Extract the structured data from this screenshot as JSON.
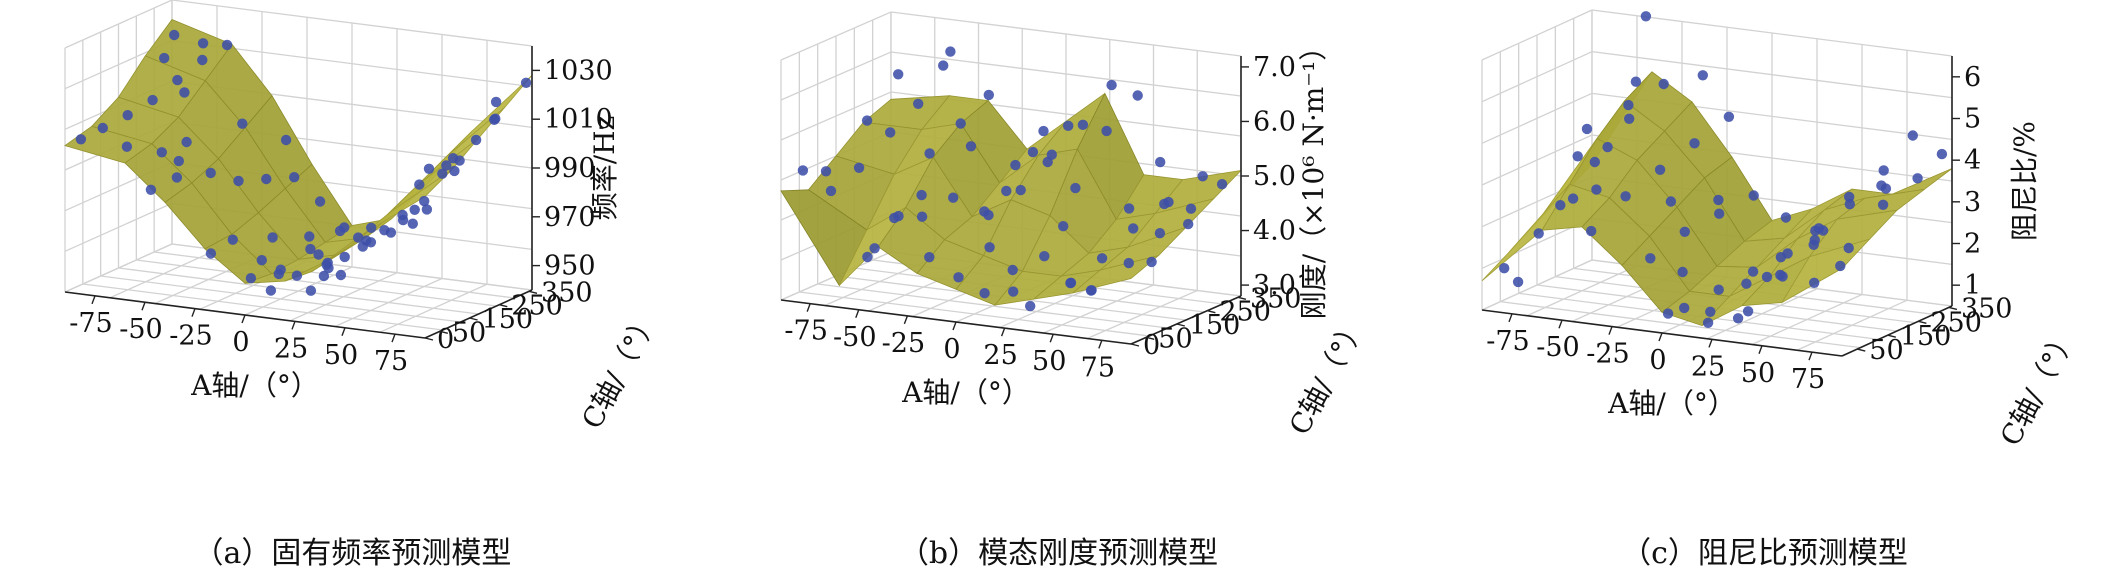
{
  "chart_data": [
    {
      "type": "scatter",
      "plot_kind": "3d-surface-with-scatter",
      "caption": "（a）固有频率预测模型",
      "xlabel": "A轴/（°）",
      "ylabel": "C轴/（°）",
      "zlabel": "频率/Hz",
      "xticks": [
        "-75",
        "-50",
        "-25",
        "0",
        "25",
        "50",
        "75"
      ],
      "yticks": [
        "0",
        "50",
        "150",
        "250",
        "350"
      ],
      "zticks": [
        "950",
        "970",
        "990",
        "1010",
        "1030"
      ],
      "xlim": [
        -90,
        90
      ],
      "ylim": [
        0,
        360
      ],
      "zlim": [
        940,
        1040
      ],
      "surface": {
        "a": [
          -90,
          -60,
          -40,
          -20,
          0,
          20,
          40,
          60,
          90
        ],
        "c": [
          0,
          90,
          180,
          270,
          360
        ],
        "z": [
          [
            1000,
            1003,
            1010,
            1022,
            1032
          ],
          [
            996,
            999,
            1005,
            1015,
            1025
          ],
          [
            982,
            985,
            990,
            998,
            1006
          ],
          [
            965,
            966,
            970,
            975,
            980
          ],
          [
            953,
            952,
            953,
            955,
            957
          ],
          [
            956,
            955,
            957,
            959,
            962
          ],
          [
            966,
            968,
            972,
            976,
            980
          ],
          [
            980,
            984,
            990,
            996,
            1002
          ],
          [
            998,
            1004,
            1012,
            1020,
            1028
          ]
        ]
      },
      "points": [
        [
          -85,
          20,
          1002
        ],
        [
          -80,
          60,
          1005
        ],
        [
          -75,
          110,
          1008
        ],
        [
          -70,
          160,
          1012
        ],
        [
          -65,
          210,
          1018
        ],
        [
          -60,
          260,
          1024
        ],
        [
          -55,
          310,
          1028
        ],
        [
          -80,
          300,
          1030
        ],
        [
          -70,
          330,
          1026
        ],
        [
          -60,
          200,
          1014
        ],
        [
          -50,
          140,
          998
        ],
        [
          -45,
          80,
          994
        ],
        [
          -40,
          40,
          990
        ],
        [
          -35,
          120,
          988
        ],
        [
          -30,
          180,
          982
        ],
        [
          -25,
          240,
          980
        ],
        [
          -20,
          300,
          978
        ],
        [
          -15,
          60,
          966
        ],
        [
          -10,
          160,
          962
        ],
        [
          -5,
          250,
          958
        ],
        [
          0,
          20,
          954
        ],
        [
          0,
          120,
          952
        ],
        [
          0,
          220,
          955
        ],
        [
          0,
          320,
          957
        ],
        [
          5,
          80,
          953
        ],
        [
          10,
          180,
          956
        ],
        [
          15,
          280,
          958
        ],
        [
          20,
          40,
          956
        ],
        [
          20,
          140,
          955
        ],
        [
          25,
          240,
          960
        ],
        [
          30,
          330,
          964
        ],
        [
          35,
          100,
          962
        ],
        [
          40,
          200,
          968
        ],
        [
          45,
          300,
          975
        ],
        [
          50,
          60,
          970
        ],
        [
          55,
          160,
          978
        ],
        [
          60,
          260,
          990
        ],
        [
          65,
          340,
          1000
        ],
        [
          70,
          100,
          985
        ],
        [
          75,
          200,
          996
        ],
        [
          80,
          300,
          1012
        ],
        [
          85,
          40,
          990
        ],
        [
          85,
          150,
          1004
        ],
        [
          88,
          250,
          1016
        ],
        [
          90,
          340,
          1026
        ],
        [
          60,
          20,
          975
        ],
        [
          30,
          20,
          952
        ],
        [
          -20,
          20,
          962
        ],
        [
          70,
          20,
          980
        ],
        [
          45,
          20,
          960
        ],
        [
          10,
          20,
          950
        ],
        [
          -50,
          20,
          985
        ],
        [
          -30,
          340,
          990
        ],
        [
          40,
          350,
          985
        ],
        [
          -65,
          40,
          1000
        ],
        [
          15,
          180,
          951
        ],
        [
          -5,
          90,
          957
        ],
        [
          25,
          110,
          958
        ],
        [
          55,
          330,
          992
        ],
        [
          -40,
          260,
          1000
        ],
        [
          65,
          240,
          995
        ],
        [
          -85,
          300,
          1020
        ],
        [
          78,
          320,
          1018
        ],
        [
          50,
          250,
          985
        ],
        [
          35,
          30,
          958
        ],
        [
          -10,
          320,
          968
        ],
        [
          5,
          300,
          960
        ],
        [
          -55,
          90,
          996
        ],
        [
          75,
          60,
          982
        ],
        [
          20,
          290,
          962
        ]
      ]
    },
    {
      "type": "scatter",
      "plot_kind": "3d-surface-with-scatter",
      "caption": "（b）模态刚度预测模型",
      "xlabel": "A轴/（°）",
      "ylabel": "C轴/（°）",
      "zlabel": "刚度/（×10⁶ N·m⁻¹）",
      "xticks": [
        "-75",
        "-50",
        "-25",
        "0",
        "25",
        "50",
        "75"
      ],
      "yticks": [
        "0",
        "50",
        "150",
        "250",
        "350"
      ],
      "zticks": [
        "3.0",
        "4.0",
        "5.0",
        "6.0",
        "7.0"
      ],
      "xlim": [
        -90,
        90
      ],
      "ylim": [
        0,
        360
      ],
      "zlim": [
        2.8,
        7.2
      ],
      "surface": {
        "a": [
          -90,
          -60,
          -40,
          -20,
          0,
          20,
          40,
          60,
          90
        ],
        "c": [
          0,
          90,
          180,
          270,
          360
        ],
        "z": [
          [
            4.8,
            4.6,
            5.0,
            5.4,
            5.6
          ],
          [
            3.2,
            4.0,
            4.8,
            5.4,
            5.8
          ],
          [
            4.0,
            4.5,
            5.2,
            5.6,
            5.8
          ],
          [
            3.6,
            4.0,
            4.2,
            4.6,
            5.0
          ],
          [
            3.4,
            3.8,
            4.6,
            5.2,
            5.6
          ],
          [
            3.2,
            3.6,
            4.4,
            5.4,
            6.2
          ],
          [
            3.4,
            3.6,
            3.8,
            4.2,
            4.8
          ],
          [
            3.6,
            3.8,
            4.0,
            4.4,
            4.8
          ],
          [
            4.0,
            4.2,
            4.5,
            4.8,
            5.1
          ]
        ]
      },
      "points": [
        [
          -85,
          40,
          5.1
        ],
        [
          -80,
          100,
          4.6
        ],
        [
          -75,
          160,
          4.9
        ],
        [
          -70,
          230,
          5.4
        ],
        [
          -65,
          290,
          5.8
        ],
        [
          -60,
          340,
          6.4
        ],
        [
          -55,
          60,
          3.6
        ],
        [
          -50,
          130,
          4.2
        ],
        [
          -45,
          200,
          5.2
        ],
        [
          -40,
          270,
          5.6
        ],
        [
          -35,
          330,
          6.0
        ],
        [
          -30,
          80,
          4.4
        ],
        [
          -25,
          150,
          4.6
        ],
        [
          -20,
          220,
          4.2
        ],
        [
          -15,
          290,
          4.9
        ],
        [
          -10,
          350,
          5.4
        ],
        [
          -5,
          40,
          3.5
        ],
        [
          0,
          110,
          3.9
        ],
        [
          5,
          180,
          4.8
        ],
        [
          10,
          250,
          5.3
        ],
        [
          15,
          320,
          5.7
        ],
        [
          20,
          60,
          3.3
        ],
        [
          25,
          130,
          3.8
        ],
        [
          30,
          200,
          4.9
        ],
        [
          35,
          270,
          5.8
        ],
        [
          40,
          340,
          6.3
        ],
        [
          45,
          90,
          3.5
        ],
        [
          50,
          160,
          3.8
        ],
        [
          55,
          230,
          4.2
        ],
        [
          60,
          300,
          4.5
        ],
        [
          65,
          30,
          3.6
        ],
        [
          70,
          120,
          3.9
        ],
        [
          75,
          190,
          4.3
        ],
        [
          80,
          260,
          4.6
        ],
        [
          85,
          330,
          4.9
        ],
        [
          -85,
          250,
          5.5
        ],
        [
          -70,
          20,
          5.2
        ],
        [
          -45,
          20,
          3.9
        ],
        [
          -20,
          40,
          3.8
        ],
        [
          10,
          30,
          3.3
        ],
        [
          35,
          20,
          3.2
        ],
        [
          60,
          60,
          3.5
        ],
        [
          88,
          80,
          4.1
        ],
        [
          88,
          200,
          4.5
        ],
        [
          -60,
          180,
          4.0
        ],
        [
          -30,
          240,
          5.3
        ],
        [
          0,
          300,
          5.0
        ],
        [
          25,
          350,
          6.4
        ],
        [
          50,
          350,
          5.1
        ],
        [
          -80,
          320,
          6.2
        ],
        [
          -10,
          170,
          4.3
        ],
        [
          15,
          90,
          3.6
        ],
        [
          40,
          120,
          3.4
        ],
        [
          70,
          250,
          4.7
        ],
        [
          -50,
          300,
          6.8
        ],
        [
          20,
          240,
          5.9
        ],
        [
          -35,
          110,
          4.7
        ],
        [
          5,
          220,
          5.4
        ],
        [
          45,
          280,
          4.4
        ],
        [
          75,
          330,
          5.0
        ],
        [
          -15,
          260,
          4.5
        ],
        [
          30,
          160,
          4.3
        ]
      ]
    },
    {
      "type": "scatter",
      "plot_kind": "3d-surface-with-scatter",
      "caption": "（c）阻尼比预测模型",
      "xlabel": "A轴/（°）",
      "ylabel": "C轴/（°）",
      "zlabel": "阻尼比/%",
      "xticks": [
        "-75",
        "-50",
        "-25",
        "0",
        "25",
        "50",
        "75"
      ],
      "yticks": [
        "50",
        "150",
        "250",
        "350"
      ],
      "zticks": [
        "1",
        "2",
        "3",
        "4",
        "5",
        "6"
      ],
      "xlim": [
        -90,
        90
      ],
      "ylim": [
        0,
        360
      ],
      "zlim": [
        0.5,
        6.5
      ],
      "surface": {
        "a": [
          -90,
          -60,
          -40,
          -20,
          0,
          20,
          40,
          60,
          90
        ],
        "c": [
          0,
          90,
          180,
          270,
          360
        ],
        "z": [
          [
            1.2,
            1.6,
            2.0,
            2.4,
            2.8
          ],
          [
            2.6,
            3.4,
            4.2,
            4.8,
            5.2
          ],
          [
            2.8,
            3.2,
            3.8,
            4.2,
            4.6
          ],
          [
            2.0,
            2.4,
            2.8,
            3.2,
            3.4
          ],
          [
            1.0,
            1.2,
            1.5,
            1.8,
            2.0
          ],
          [
            0.8,
            1.2,
            1.6,
            2.0,
            2.4
          ],
          [
            1.4,
            1.8,
            2.4,
            2.8,
            3.0
          ],
          [
            1.6,
            2.4,
            3.0,
            3.2,
            3.0
          ],
          [
            2.6,
            3.0,
            3.4,
            3.6,
            3.8
          ]
        ]
      },
      "points": [
        [
          -85,
          40,
          1.4
        ],
        [
          -80,
          120,
          2.0
        ],
        [
          -75,
          200,
          2.6
        ],
        [
          -70,
          280,
          3.6
        ],
        [
          -65,
          340,
          5.0
        ],
        [
          -60,
          60,
          3.0
        ],
        [
          -55,
          140,
          3.8
        ],
        [
          -50,
          220,
          4.6
        ],
        [
          -45,
          300,
          5.2
        ],
        [
          -40,
          30,
          2.6
        ],
        [
          -35,
          110,
          3.2
        ],
        [
          -30,
          190,
          3.6
        ],
        [
          -25,
          270,
          4.0
        ],
        [
          -20,
          350,
          4.4
        ],
        [
          -15,
          60,
          2.0
        ],
        [
          -10,
          140,
          2.4
        ],
        [
          -5,
          220,
          2.6
        ],
        [
          0,
          300,
          2.8
        ],
        [
          5,
          40,
          1.0
        ],
        [
          10,
          120,
          1.2
        ],
        [
          15,
          200,
          1.4
        ],
        [
          20,
          280,
          1.6
        ],
        [
          25,
          350,
          2.0
        ],
        [
          30,
          80,
          1.6
        ],
        [
          35,
          160,
          2.0
        ],
        [
          40,
          240,
          2.4
        ],
        [
          45,
          320,
          2.8
        ],
        [
          50,
          60,
          2.0
        ],
        [
          55,
          140,
          2.6
        ],
        [
          60,
          220,
          3.4
        ],
        [
          65,
          300,
          3.8
        ],
        [
          70,
          40,
          2.0
        ],
        [
          75,
          120,
          2.6
        ],
        [
          80,
          200,
          3.4
        ],
        [
          85,
          280,
          3.8
        ],
        [
          88,
          340,
          4.2
        ],
        [
          -88,
          300,
          3.2
        ],
        [
          -60,
          340,
          6.6
        ],
        [
          -75,
          20,
          1.2
        ],
        [
          0,
          20,
          0.9
        ],
        [
          20,
          20,
          0.8
        ],
        [
          40,
          20,
          1.2
        ],
        [
          -30,
          330,
          5.4
        ],
        [
          10,
          340,
          2.2
        ],
        [
          60,
          340,
          3.2
        ],
        [
          80,
          60,
          2.4
        ],
        [
          -20,
          160,
          3.0
        ],
        [
          30,
          300,
          1.8
        ],
        [
          50,
          200,
          2.6
        ],
        [
          -45,
          80,
          3.4
        ],
        [
          -5,
          100,
          1.6
        ],
        [
          25,
          180,
          1.4
        ],
        [
          70,
          260,
          3.6
        ],
        [
          -65,
          180,
          4.4
        ],
        [
          15,
          60,
          0.9
        ],
        [
          45,
          100,
          1.8
        ],
        [
          -10,
          250,
          2.8
        ],
        [
          75,
          330,
          4.6
        ],
        [
          35,
          20,
          1.0
        ],
        [
          -55,
          250,
          4.8
        ]
      ]
    }
  ]
}
